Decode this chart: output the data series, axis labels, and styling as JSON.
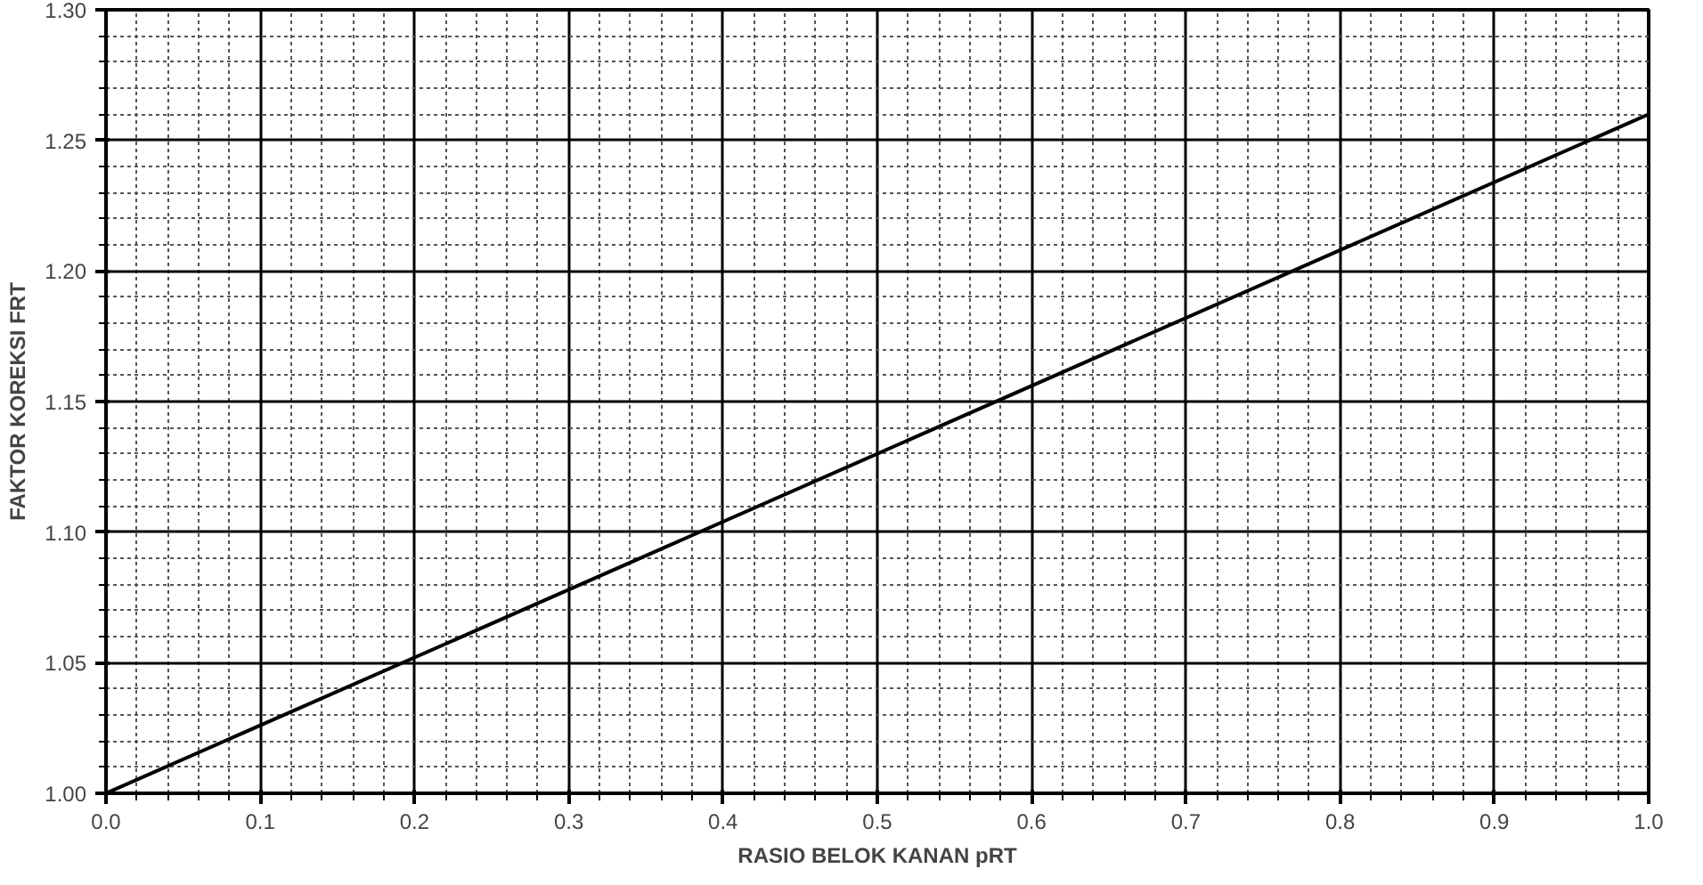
{
  "chart_data": {
    "type": "line",
    "xlabel": "RASIO BELOK KANAN pRT",
    "ylabel": "FAKTOR KOREKSI FRT",
    "x": [
      0.0,
      1.0
    ],
    "series": [
      {
        "color": "#000000",
        "values": [
          1.0,
          1.26
        ]
      }
    ],
    "xlim": [
      0.0,
      1.0
    ],
    "ylim": [
      1.0,
      1.3
    ],
    "xticks": [
      {
        "value": 0,
        "label": "0.0"
      },
      0.1,
      0.2,
      0.3,
      0.4,
      0.5,
      0.6,
      0.7,
      0.8,
      0.9,
      {
        "value": 1,
        "label": "1.0"
      }
    ],
    "yticks": [
      {
        "value": 1,
        "label": "1.00"
      },
      1.05,
      {
        "value": 1.1,
        "label": "1.10"
      },
      1.15,
      {
        "value": 1.2,
        "label": "1.20"
      },
      1.25,
      {
        "value": 1.3,
        "label": "1.30"
      }
    ],
    "grid": true,
    "marker": "none",
    "line_style": "solid"
  }
}
